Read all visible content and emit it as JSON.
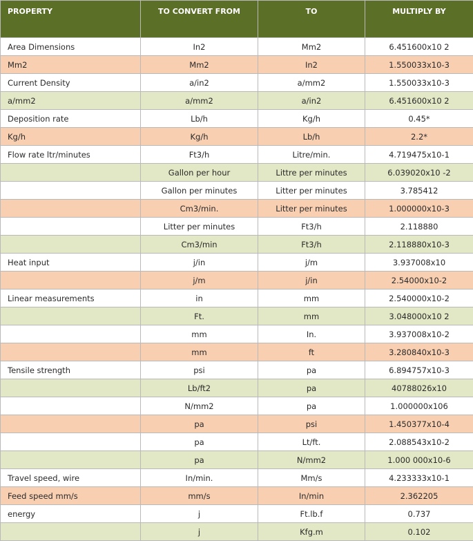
{
  "table": {
    "header": [
      "PROPERTY",
      "TO  CONVERT FROM",
      "TO",
      "MULTIPLY BY"
    ],
    "header_fill": "#5b6f27",
    "rows": [
      [
        "Area Dimensions",
        "In2",
        "Mm2",
        "6.451600x10 2"
      ],
      [
        "Mm2",
        "Mm2",
        "In2",
        "1.550033x10-3"
      ],
      [
        "Current Density",
        "a/in2",
        "a/mm2",
        "1.550033x10-3"
      ],
      [
        "a/mm2",
        "a/mm2",
        "a/in2",
        "6.451600x10 2"
      ],
      [
        "Deposition rate",
        "Lb/h",
        "Kg/h",
        "0.45*"
      ],
      [
        "Kg/h",
        "Kg/h",
        "Lb/h",
        "2.2*"
      ],
      [
        "Flow rate ltr/minutes",
        "Ft3/h",
        "Litre/min.",
        "4.719475x10-1"
      ],
      [
        null,
        "Gallon per hour",
        "Littre per minutes",
        "6.039020x10 -2"
      ],
      [
        null,
        "Gallon per minutes",
        "Litter per minutes",
        "3.785412"
      ],
      [
        null,
        "Cm3/min.",
        "Litter per minutes",
        "1.000000x10-3"
      ],
      [
        null,
        "Litter per minutes",
        "Ft3/h",
        "2.118880"
      ],
      [
        null,
        "Cm3/min",
        "Ft3/h",
        "2.118880x10-3"
      ],
      [
        "Heat input",
        "j/in",
        "j/m",
        "3.937008x10"
      ],
      [
        null,
        "j/m",
        "j/in",
        "2.54000x10-2"
      ],
      [
        "Linear measurements",
        "in",
        "mm",
        "2.540000x10-2"
      ],
      [
        null,
        "Ft.",
        "mm",
        "3.048000x10 2"
      ],
      [
        null,
        "mm",
        "In.",
        "3.937008x10-2"
      ],
      [
        null,
        "mm",
        "ft",
        "3.280840x10-3"
      ],
      [
        "Tensile strength",
        "psi",
        "pa",
        "6.894757x10-3"
      ],
      [
        null,
        "Lb/ft2",
        "pa",
        "40788026x10"
      ],
      [
        null,
        "N/mm2",
        "pa",
        "1.000000x106"
      ],
      [
        null,
        "pa",
        "psi",
        "1.450377x10-4"
      ],
      [
        null,
        "pa",
        "Lt/ft.",
        "2.088543x10-2"
      ],
      [
        null,
        "pa",
        "N/mm2",
        "1.000 000x10-6"
      ],
      [
        "Travel speed, wire",
        "In/min.",
        "Mm/s",
        "4.233333x10-1"
      ],
      [
        "Feed speed mm/s",
        "mm/s",
        "In/min",
        "2.362205"
      ],
      [
        "energy",
        "j",
        "Ft.lb.f",
        "0.737"
      ],
      [
        null,
        "j",
        "Kfg.m",
        "0.102"
      ]
    ],
    "row_fills": [
      "#ffffff",
      "#f9cfb2",
      "#ffffff",
      "#e2e8c5",
      "#ffffff",
      "#f9cfb2",
      "#ffffff",
      "#e2e8c5",
      "#ffffff",
      "#f9cfb2",
      "#ffffff",
      "#e2e8c5",
      "#ffffff",
      "#f9cfb2",
      "#ffffff",
      "#e2e8c5",
      "#ffffff",
      "#f9cfb2",
      "#ffffff",
      "#e2e8c5",
      "#ffffff",
      "#f9cfb2",
      "#ffffff",
      "#e2e8c5",
      "#ffffff",
      "#f9cfb2",
      "#ffffff",
      "#e2e8c5"
    ]
  }
}
